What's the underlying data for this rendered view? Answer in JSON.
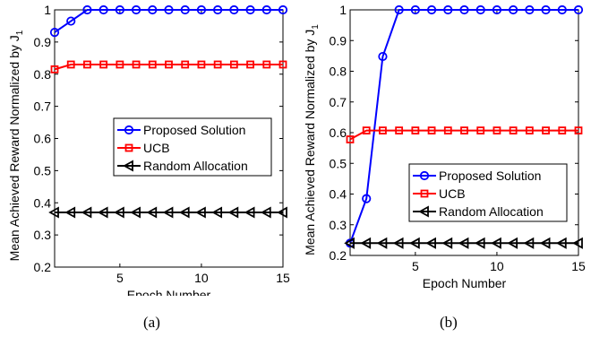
{
  "chart_data": [
    {
      "type": "line",
      "caption": "(a)",
      "xlabel": "Epoch Number",
      "ylabel": "Mean Achieved Reward Normalized by J",
      "ylabel_subscript": "1",
      "xlim": [
        1,
        15
      ],
      "ylim": [
        0.2,
        1
      ],
      "xticks": [
        5,
        10,
        15
      ],
      "yticks": [
        0.2,
        0.3,
        0.4,
        0.5,
        0.6,
        0.7,
        0.8,
        0.9,
        1
      ],
      "x": [
        1,
        2,
        3,
        4,
        5,
        6,
        7,
        8,
        9,
        10,
        11,
        12,
        13,
        14,
        15
      ],
      "grid": false,
      "legend_position": "right-middle",
      "series": [
        {
          "name": "Proposed Solution",
          "color": "#0000ff",
          "marker": "circle",
          "values": [
            0.93,
            0.965,
            1.0,
            1.0,
            1.0,
            1.0,
            1.0,
            1.0,
            1.0,
            1.0,
            1.0,
            1.0,
            1.0,
            1.0,
            1.0
          ]
        },
        {
          "name": "UCB",
          "color": "#ff0000",
          "marker": "square",
          "values": [
            0.815,
            0.83,
            0.83,
            0.83,
            0.83,
            0.83,
            0.83,
            0.83,
            0.83,
            0.83,
            0.83,
            0.83,
            0.83,
            0.83,
            0.83
          ]
        },
        {
          "name": "Random Allocation",
          "color": "#000000",
          "marker": "triangle-left",
          "values": [
            0.37,
            0.37,
            0.37,
            0.37,
            0.37,
            0.37,
            0.37,
            0.37,
            0.37,
            0.37,
            0.37,
            0.37,
            0.37,
            0.37,
            0.37
          ]
        }
      ]
    },
    {
      "type": "line",
      "caption": "(b)",
      "xlabel": "Epoch Number",
      "ylabel": "Mean Achieved Reward Normalized by J",
      "ylabel_subscript": "1",
      "xlim": [
        1,
        15
      ],
      "ylim": [
        0.2,
        1
      ],
      "xticks": [
        5,
        10,
        15
      ],
      "yticks": [
        0.2,
        0.3,
        0.4,
        0.5,
        0.6,
        0.7,
        0.8,
        0.9,
        1
      ],
      "x": [
        1,
        2,
        3,
        4,
        5,
        6,
        7,
        8,
        9,
        10,
        11,
        12,
        13,
        14,
        15
      ],
      "grid": false,
      "legend_position": "right-bottom",
      "series": [
        {
          "name": "Proposed Solution",
          "color": "#0000ff",
          "marker": "circle",
          "values": [
            0.24,
            0.385,
            0.848,
            1.0,
            1.0,
            1.0,
            1.0,
            1.0,
            1.0,
            1.0,
            1.0,
            1.0,
            1.0,
            1.0,
            1.0
          ]
        },
        {
          "name": "UCB",
          "color": "#ff0000",
          "marker": "square",
          "values": [
            0.578,
            0.607,
            0.607,
            0.607,
            0.607,
            0.607,
            0.607,
            0.607,
            0.607,
            0.607,
            0.607,
            0.607,
            0.607,
            0.607,
            0.607
          ]
        },
        {
          "name": "Random Allocation",
          "color": "#000000",
          "marker": "triangle-left",
          "values": [
            0.24,
            0.24,
            0.24,
            0.24,
            0.24,
            0.24,
            0.24,
            0.24,
            0.24,
            0.24,
            0.24,
            0.24,
            0.24,
            0.24,
            0.24
          ]
        }
      ]
    }
  ]
}
